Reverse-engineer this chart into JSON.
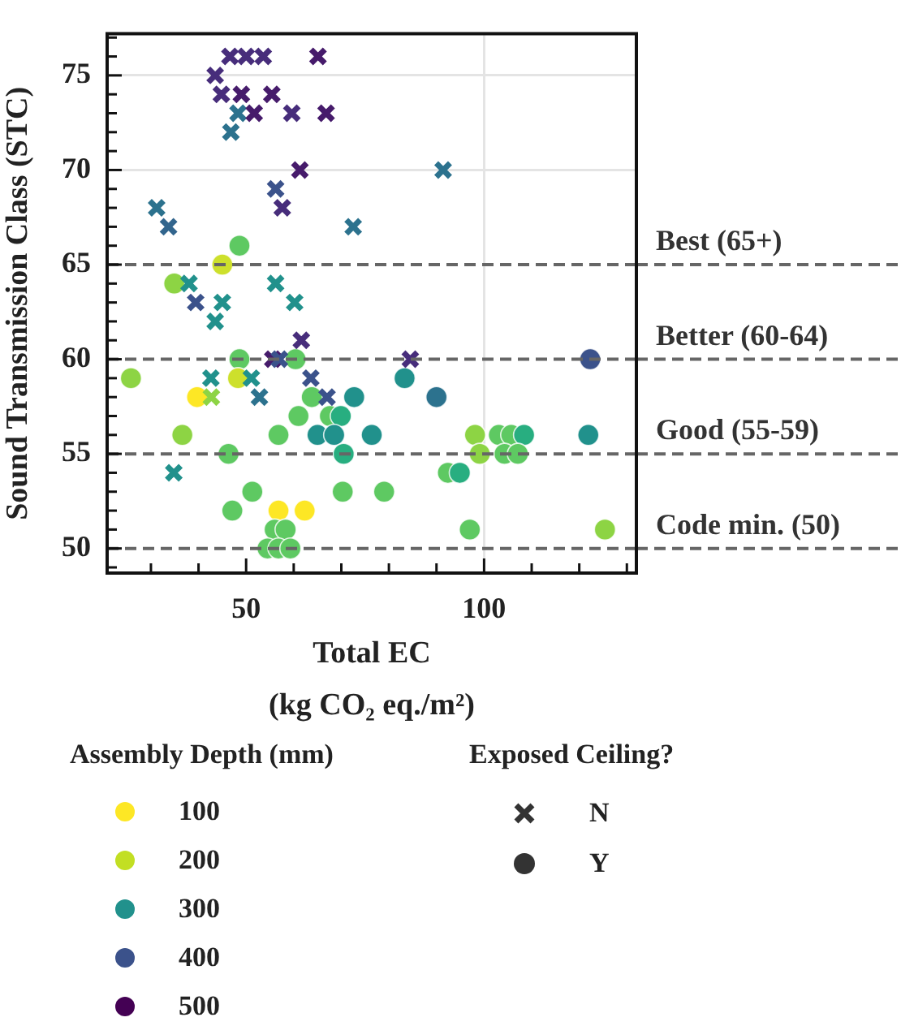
{
  "chart_data": {
    "type": "scatter",
    "xlabel": "Total EC\n(kg CO₂ eq./m²)",
    "ylabel": "Sound Transmission Class (STC)",
    "legend_title": "Exposed Ceiling?",
    "clabel": "Assembly Depth (mm)",
    "annotations": [
      "100",
      "200",
      "300",
      "400",
      "500"
    ],
    "colors": [
      "#fde725",
      "#c2df23",
      "#21918c",
      "#3b528b",
      "#440154"
    ],
    "xlim": [
      20.8,
      132
    ],
    "ylim": [
      48.7,
      77.2
    ],
    "xticks": [
      {
        "value": 30,
        "label": null
      },
      {
        "value": 40,
        "label": null
      },
      50,
      {
        "value": 60,
        "label": null
      },
      {
        "value": 70,
        "label": null
      },
      {
        "value": 80,
        "label": null
      },
      {
        "value": 90,
        "label": null
      },
      100,
      {
        "value": 110,
        "label": null
      },
      {
        "value": 120,
        "label": null
      },
      {
        "value": 130,
        "label": null
      }
    ],
    "yticks": [
      {
        "value": 49,
        "label": null
      },
      50,
      {
        "value": 51,
        "label": null
      },
      {
        "value": 52,
        "label": null
      },
      {
        "value": 53,
        "label": null
      },
      {
        "value": 54,
        "label": null
      },
      55,
      {
        "value": 56,
        "label": null
      },
      {
        "value": 57,
        "label": null
      },
      {
        "value": 58,
        "label": null
      },
      {
        "value": 59,
        "label": null
      },
      60,
      {
        "value": 61,
        "label": null
      },
      {
        "value": 62,
        "label": null
      },
      {
        "value": 63,
        "label": null
      },
      {
        "value": 64,
        "label": null
      },
      65,
      {
        "value": 66,
        "label": null
      },
      {
        "value": 67,
        "label": null
      },
      {
        "value": 68,
        "label": null
      },
      {
        "value": 69,
        "label": null
      },
      70,
      {
        "value": 71,
        "label": null
      },
      {
        "value": 72,
        "label": null
      },
      {
        "value": 73,
        "label": null
      },
      {
        "value": 74,
        "label": null
      },
      75,
      {
        "value": 76,
        "label": null
      },
      {
        "value": 77,
        "label": null
      }
    ],
    "grid": true,
    "legend": "bottom",
    "ref_lines": [
      {
        "axis": "y",
        "value": 65,
        "label": "Best (65+)",
        "color": "#666666",
        "line_style": "dashed"
      },
      {
        "axis": "y",
        "value": 60,
        "label": "Better (60-64)",
        "color": "#666666",
        "line_style": "dashed"
      },
      {
        "axis": "y",
        "value": 55,
        "label": "Good (55-59)",
        "color": "#666666",
        "line_style": "dashed"
      },
      {
        "axis": "y",
        "value": 50,
        "label": "Code min. (50)",
        "color": "#666666",
        "line_style": "dashed"
      }
    ],
    "series": [
      {
        "name": "N",
        "marker": "cross",
        "x": [
          46.6,
          50,
          53.6,
          65.1,
          43.5,
          44.8,
          49.0,
          55.4,
          48.3,
          51.7,
          59.6,
          66.8,
          46.8,
          61.3,
          91.4,
          56.2,
          57.6,
          31.2,
          33.7,
          72.5,
          38.0,
          56.2,
          39.4,
          45.0,
          60.2,
          43.5,
          61.6,
          55.6,
          57.0,
          84.5,
          42.6,
          51.1,
          63.6,
          42.7,
          52.8,
          67.0,
          34.8
        ],
        "values": [
          76,
          76,
          76,
          76,
          75,
          74,
          74,
          74,
          73,
          73,
          73,
          73,
          72,
          70,
          70,
          69,
          68,
          68,
          67,
          67,
          64,
          64,
          63,
          63,
          63,
          62,
          61,
          60,
          60,
          60,
          59,
          59,
          59,
          58,
          58,
          58,
          54
        ],
        "colors": [
          "#472d7b",
          "#472d7b",
          "#472d7b",
          "#461b6b",
          "#472d7b",
          "#472d7b",
          "#461b6b",
          "#461b6b",
          "#2c728e",
          "#461b6b",
          "#472d7b",
          "#461b6b",
          "#2c728e",
          "#461b6b",
          "#2c728e",
          "#3b528b",
          "#472d7b",
          "#2c728e",
          "#32658d",
          "#2c728e",
          "#21918c",
          "#21918c",
          "#3b528b",
          "#21918c",
          "#21918c",
          "#21918c",
          "#472d7b",
          "#461b6b",
          "#3b528b",
          "#472d7b",
          "#21918c",
          "#21918c",
          "#3b528b",
          "#8dd444",
          "#2c728e",
          "#3b528b",
          "#21918c"
        ]
      },
      {
        "name": "Y",
        "marker": "circle",
        "x": [
          48.6,
          45.0,
          34.9,
          48.6,
          60.4,
          122.3,
          25.8,
          48.3,
          83.3,
          39.7,
          63.8,
          72.7,
          90.0,
          61.0,
          67.6,
          69.9,
          36.6,
          56.8,
          65.0,
          68.5,
          76.4,
          98.1,
          103.1,
          105.7,
          108.4,
          121.9,
          46.3,
          70.5,
          99.1,
          104.3,
          107.1,
          92.4,
          94.9,
          51.3,
          70.3,
          79.0,
          47.1,
          56.8,
          62.3,
          56.0,
          58.3,
          97.0,
          125.4,
          54.5,
          56.8,
          59.3
        ],
        "values": [
          66,
          65,
          64,
          60,
          60,
          60,
          59,
          59,
          59,
          58,
          58,
          58,
          58,
          57,
          57,
          57,
          56,
          56,
          56,
          56,
          56,
          56,
          56,
          56,
          56,
          56,
          55,
          55,
          55,
          55,
          55,
          54,
          54,
          53,
          53,
          53,
          52,
          52,
          52,
          51,
          51,
          51,
          51,
          50,
          50,
          50
        ],
        "colors": [
          "#5ec962",
          "#cde02c",
          "#8dd444",
          "#5ec962",
          "#5ec962",
          "#3b528b",
          "#8dd444",
          "#cde02c",
          "#21918c",
          "#fde725",
          "#5ec962",
          "#21918c",
          "#2c728e",
          "#5ec962",
          "#5ec962",
          "#28ae80",
          "#8dd444",
          "#5ec962",
          "#21918c",
          "#21918c",
          "#21918c",
          "#8dd444",
          "#5ec962",
          "#5ec962",
          "#28ae80",
          "#21918c",
          "#5ec962",
          "#28ae80",
          "#8dd444",
          "#5ec962",
          "#5ec962",
          "#5ec962",
          "#28ae80",
          "#5ec962",
          "#5ec962",
          "#5ec962",
          "#5ec962",
          "#fde725",
          "#fde725",
          "#5ec962",
          "#5ec962",
          "#5ec962",
          "#8dd444",
          "#5ec962",
          "#5ec962",
          "#5ec962"
        ]
      }
    ]
  }
}
